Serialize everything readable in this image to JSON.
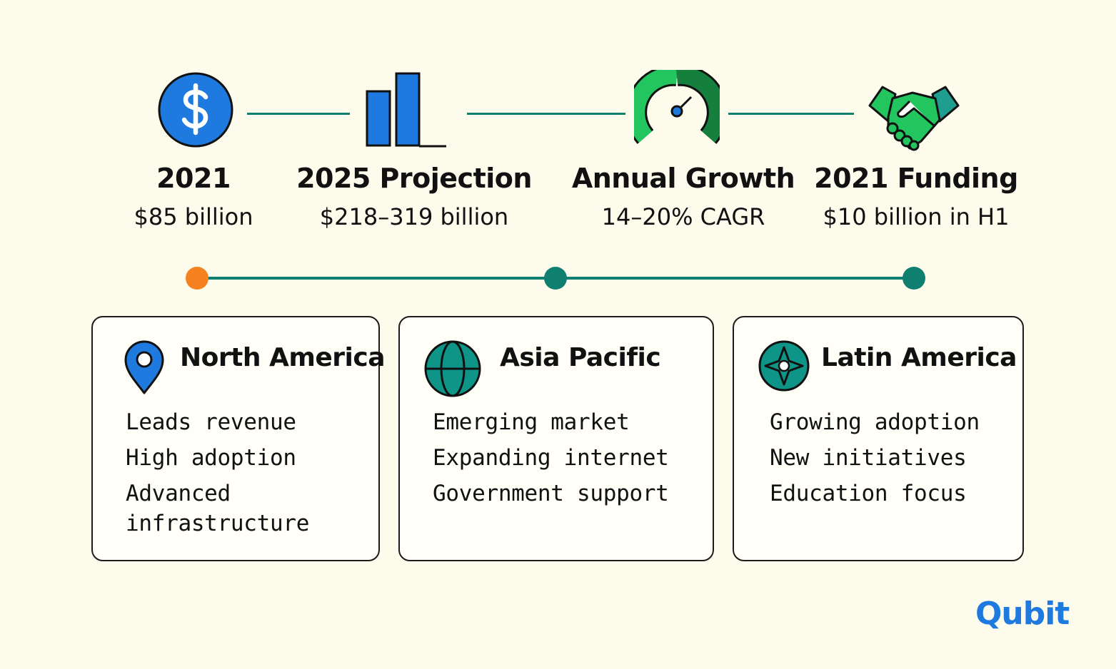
{
  "colors": {
    "background": "#fdfbec",
    "teal": "#0f7f6f",
    "blue": "#1f7ae0",
    "green": "#22c55e",
    "orange": "#f5821f"
  },
  "stats": [
    {
      "icon": "dollar-circle-icon",
      "label": "2021",
      "value": "$85 billion"
    },
    {
      "icon": "bar-chart-icon",
      "label": "2025 Projection",
      "value": "$218–319 billion"
    },
    {
      "icon": "gauge-icon",
      "label": "Annual Growth",
      "value": "14–20% CAGR"
    },
    {
      "icon": "handshake-icon",
      "label": "2021 Funding",
      "value": "$10 billion in H1"
    }
  ],
  "regions": [
    {
      "icon": "map-pin-icon",
      "title": "North America",
      "items": [
        "Leads revenue",
        "High adoption",
        "Advanced infrastructure"
      ]
    },
    {
      "icon": "globe-icon",
      "title": "Asia Pacific",
      "items": [
        "Emerging market",
        "Expanding internet",
        "Government support"
      ]
    },
    {
      "icon": "compass-icon",
      "title": "Latin America",
      "items": [
        "Growing adoption",
        "New initiatives",
        "Education focus"
      ]
    }
  ],
  "logo": {
    "text": "Qubit"
  }
}
